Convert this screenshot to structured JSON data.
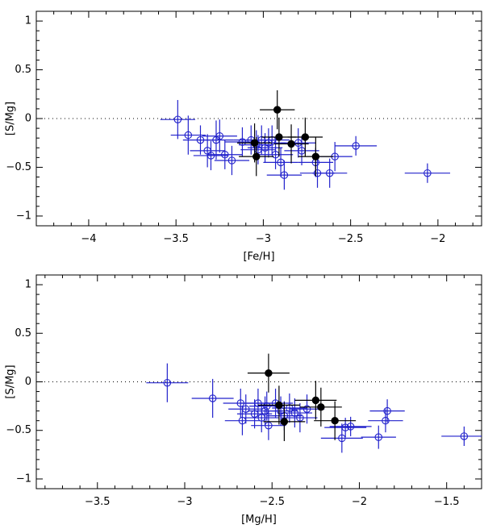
{
  "chart_data": [
    {
      "type": "scatter",
      "xlabel": "[Fe/H]",
      "ylabel": "[S/Mg]",
      "xlim": [
        -4.3,
        -1.75
      ],
      "ylim": [
        -1.1,
        1.1
      ],
      "xticks": [
        -4,
        -3.5,
        -3,
        -2.5,
        -2
      ],
      "xtick_labels": [
        "−4",
        "−3.5",
        "−3",
        "−2.5",
        "−2"
      ],
      "yticks": [
        -1,
        -0.5,
        0,
        0.5,
        1
      ],
      "ytick_labels": [
        "−1",
        "−0.5",
        "0",
        "0.5",
        "1"
      ],
      "reference_line": 0,
      "series": [
        {
          "name": "open circles",
          "color": "#2222cc",
          "marker": "open-circle",
          "points": [
            {
              "x": -3.49,
              "y": -0.01,
              "xerr": 0.1,
              "yerr": 0.2
            },
            {
              "x": -3.43,
              "y": -0.17,
              "xerr": 0.1,
              "yerr": 0.2
            },
            {
              "x": -3.36,
              "y": -0.22,
              "xerr": 0.1,
              "yerr": 0.15
            },
            {
              "x": -3.32,
              "y": -0.33,
              "xerr": 0.1,
              "yerr": 0.17
            },
            {
              "x": -3.3,
              "y": -0.38,
              "xerr": 0.1,
              "yerr": 0.15
            },
            {
              "x": -3.27,
              "y": -0.22,
              "xerr": 0.1,
              "yerr": 0.2
            },
            {
              "x": -3.25,
              "y": -0.18,
              "xerr": 0.1,
              "yerr": 0.17
            },
            {
              "x": -3.22,
              "y": -0.37,
              "xerr": 0.1,
              "yerr": 0.15
            },
            {
              "x": -3.18,
              "y": -0.43,
              "xerr": 0.1,
              "yerr": 0.15
            },
            {
              "x": -3.12,
              "y": -0.24,
              "xerr": 0.1,
              "yerr": 0.15
            },
            {
              "x": -3.07,
              "y": -0.22,
              "xerr": 0.1,
              "yerr": 0.15
            },
            {
              "x": -3.04,
              "y": -0.27,
              "xerr": 0.1,
              "yerr": 0.15
            },
            {
              "x": -3.03,
              "y": -0.32,
              "xerr": 0.1,
              "yerr": 0.15
            },
            {
              "x": -3.01,
              "y": -0.22,
              "xerr": 0.1,
              "yerr": 0.15
            },
            {
              "x": -2.99,
              "y": -0.3,
              "xerr": 0.1,
              "yerr": 0.15
            },
            {
              "x": -2.97,
              "y": -0.25,
              "xerr": 0.1,
              "yerr": 0.15
            },
            {
              "x": -2.95,
              "y": -0.22,
              "xerr": 0.1,
              "yerr": 0.15
            },
            {
              "x": -2.93,
              "y": -0.37,
              "xerr": 0.1,
              "yerr": 0.15
            },
            {
              "x": -2.9,
              "y": -0.45,
              "xerr": 0.1,
              "yerr": 0.15
            },
            {
              "x": -2.88,
              "y": -0.58,
              "xerr": 0.1,
              "yerr": 0.15
            },
            {
              "x": -2.8,
              "y": -0.25,
              "xerr": 0.1,
              "yerr": 0.15
            },
            {
              "x": -2.78,
              "y": -0.33,
              "xerr": 0.1,
              "yerr": 0.15
            },
            {
              "x": -2.7,
              "y": -0.45,
              "xerr": 0.1,
              "yerr": 0.15
            },
            {
              "x": -2.69,
              "y": -0.56,
              "xerr": 0.1,
              "yerr": 0.15
            },
            {
              "x": -2.62,
              "y": -0.56,
              "xerr": 0.1,
              "yerr": 0.15
            },
            {
              "x": -2.59,
              "y": -0.39,
              "xerr": 0.1,
              "yerr": 0.15
            },
            {
              "x": -2.47,
              "y": -0.28,
              "xerr": 0.12,
              "yerr": 0.1
            },
            {
              "x": -2.06,
              "y": -0.56,
              "xerr": 0.13,
              "yerr": 0.1
            }
          ]
        },
        {
          "name": "filled circles",
          "color": "#000000",
          "marker": "filled-circle",
          "points": [
            {
              "x": -2.92,
              "y": 0.09,
              "xerr": 0.1,
              "yerr": 0.2
            },
            {
              "x": -2.91,
              "y": -0.19,
              "xerr": 0.1,
              "yerr": 0.2
            },
            {
              "x": -3.05,
              "y": -0.25,
              "xerr": 0.1,
              "yerr": 0.2
            },
            {
              "x": -3.04,
              "y": -0.39,
              "xerr": 0.1,
              "yerr": 0.2
            },
            {
              "x": -2.84,
              "y": -0.26,
              "xerr": 0.1,
              "yerr": 0.2
            },
            {
              "x": -2.76,
              "y": -0.19,
              "xerr": 0.1,
              "yerr": 0.2
            },
            {
              "x": -2.7,
              "y": -0.39,
              "xerr": 0.1,
              "yerr": 0.2
            }
          ]
        }
      ]
    },
    {
      "type": "scatter",
      "xlabel": "[Mg/H]",
      "ylabel": "[S/Mg]",
      "xlim": [
        -3.85,
        -1.3
      ],
      "ylim": [
        -1.1,
        1.1
      ],
      "xticks": [
        -3.5,
        -3,
        -2.5,
        -2,
        -1.5
      ],
      "xtick_labels": [
        "−3.5",
        "−3",
        "−2.5",
        "−2",
        "−1.5"
      ],
      "yticks": [
        -1,
        -0.5,
        0,
        0.5,
        1
      ],
      "ytick_labels": [
        "−1",
        "−0.5",
        "0",
        "0.5",
        "1"
      ],
      "reference_line": 0,
      "series": [
        {
          "name": "open circles",
          "color": "#2222cc",
          "marker": "open-circle",
          "points": [
            {
              "x": -3.1,
              "y": -0.01,
              "xerr": 0.12,
              "yerr": 0.2
            },
            {
              "x": -2.84,
              "y": -0.17,
              "xerr": 0.12,
              "yerr": 0.2
            },
            {
              "x": -2.68,
              "y": -0.22,
              "xerr": 0.1,
              "yerr": 0.15
            },
            {
              "x": -2.67,
              "y": -0.4,
              "xerr": 0.1,
              "yerr": 0.15
            },
            {
              "x": -2.65,
              "y": -0.28,
              "xerr": 0.1,
              "yerr": 0.15
            },
            {
              "x": -2.6,
              "y": -0.33,
              "xerr": 0.1,
              "yerr": 0.15
            },
            {
              "x": -2.58,
              "y": -0.22,
              "xerr": 0.1,
              "yerr": 0.15
            },
            {
              "x": -2.56,
              "y": -0.37,
              "xerr": 0.1,
              "yerr": 0.15
            },
            {
              "x": -2.54,
              "y": -0.3,
              "xerr": 0.1,
              "yerr": 0.15
            },
            {
              "x": -2.53,
              "y": -0.25,
              "xerr": 0.1,
              "yerr": 0.15
            },
            {
              "x": -2.52,
              "y": -0.45,
              "xerr": 0.1,
              "yerr": 0.15
            },
            {
              "x": -2.48,
              "y": -0.22,
              "xerr": 0.1,
              "yerr": 0.15
            },
            {
              "x": -2.45,
              "y": -0.3,
              "xerr": 0.1,
              "yerr": 0.15
            },
            {
              "x": -2.43,
              "y": -0.35,
              "xerr": 0.1,
              "yerr": 0.15
            },
            {
              "x": -2.4,
              "y": -0.27,
              "xerr": 0.1,
              "yerr": 0.15
            },
            {
              "x": -2.37,
              "y": -0.32,
              "xerr": 0.1,
              "yerr": 0.15
            },
            {
              "x": -2.34,
              "y": -0.37,
              "xerr": 0.1,
              "yerr": 0.15
            },
            {
              "x": -2.3,
              "y": -0.28,
              "xerr": 0.1,
              "yerr": 0.15
            },
            {
              "x": -2.1,
              "y": -0.58,
              "xerr": 0.12,
              "yerr": 0.15
            },
            {
              "x": -2.08,
              "y": -0.47,
              "xerr": 0.12,
              "yerr": 0.1
            },
            {
              "x": -2.05,
              "y": -0.46,
              "xerr": 0.12,
              "yerr": 0.1
            },
            {
              "x": -1.89,
              "y": -0.57,
              "xerr": 0.1,
              "yerr": 0.12
            },
            {
              "x": -1.85,
              "y": -0.4,
              "xerr": 0.1,
              "yerr": 0.12
            },
            {
              "x": -1.84,
              "y": -0.3,
              "xerr": 0.1,
              "yerr": 0.12
            },
            {
              "x": -1.4,
              "y": -0.56,
              "xerr": 0.13,
              "yerr": 0.1
            }
          ]
        },
        {
          "name": "filled circles",
          "color": "#000000",
          "marker": "filled-circle",
          "points": [
            {
              "x": -2.52,
              "y": 0.09,
              "xerr": 0.12,
              "yerr": 0.2
            },
            {
              "x": -2.46,
              "y": -0.24,
              "xerr": 0.12,
              "yerr": 0.2
            },
            {
              "x": -2.43,
              "y": -0.41,
              "xerr": 0.12,
              "yerr": 0.2
            },
            {
              "x": -2.25,
              "y": -0.19,
              "xerr": 0.12,
              "yerr": 0.2
            },
            {
              "x": -2.22,
              "y": -0.26,
              "xerr": 0.12,
              "yerr": 0.2
            },
            {
              "x": -2.14,
              "y": -0.4,
              "xerr": 0.12,
              "yerr": 0.2
            }
          ]
        }
      ]
    }
  ]
}
